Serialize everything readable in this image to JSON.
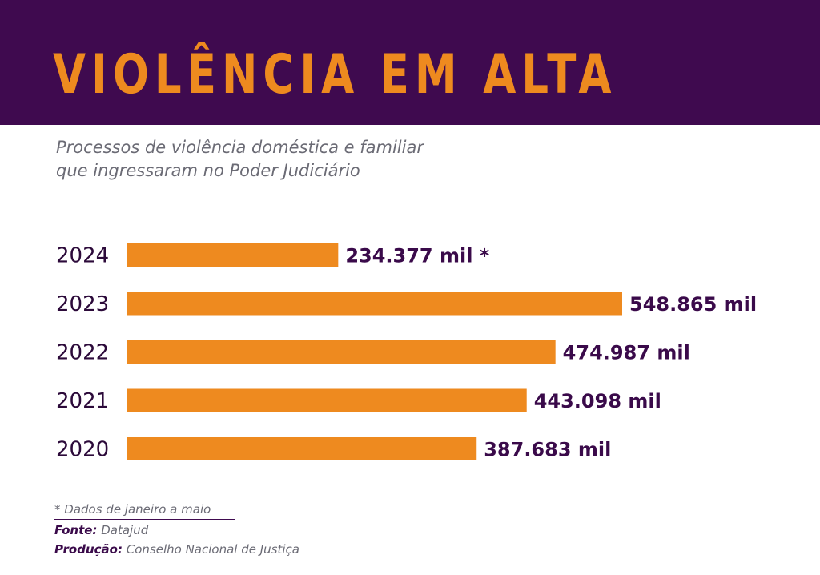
{
  "header": {
    "title": "VIOLÊNCIA EM ALTA"
  },
  "subtitle": {
    "line1": "Processos de violência doméstica e familiar",
    "line2": "que ingressaram no Poder Judiciário"
  },
  "chart_data": {
    "type": "bar",
    "orientation": "horizontal",
    "title": "VIOLÊNCIA EM ALTA",
    "subtitle": "Processos de violência doméstica e familiar que ingressaram no Poder Judiciário",
    "categories": [
      "2024",
      "2023",
      "2022",
      "2021",
      "2020"
    ],
    "values": [
      234377,
      548865,
      474987,
      443098,
      387683
    ],
    "value_labels": [
      "234.377 mil *",
      "548.865 mil",
      "474.987 mil",
      "443.098 mil",
      "387.683 mil"
    ],
    "xlim": [
      0,
      548865
    ],
    "grid": false,
    "legend": "none",
    "bar_color": "#ee8a1f"
  },
  "notes": {
    "star_note": "* Dados de janeiro a maio",
    "source_label": "Fonte:",
    "source_value": "Datajud",
    "production_label": "Produção:",
    "production_value": "Conselho Nacional de Justiça"
  },
  "colors": {
    "header_bg": "#3f0a4f",
    "accent": "#ee8a1f",
    "value_text": "#3a0a4a"
  }
}
